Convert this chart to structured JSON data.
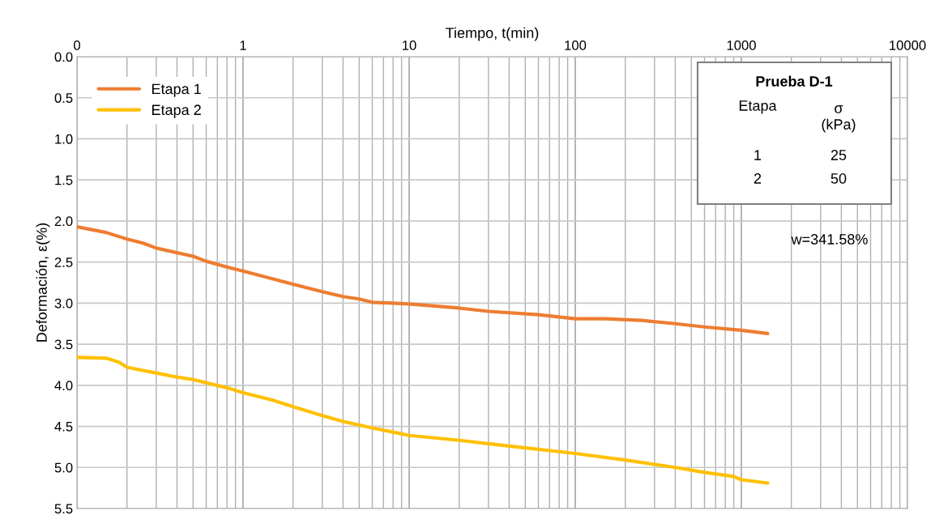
{
  "chart_data": {
    "type": "line",
    "xlabel": "Tiempo, t(min)",
    "ylabel": "Deformación, ε(%)",
    "log": "x",
    "xlim": [
      0.1,
      10000
    ],
    "xticks": [
      {
        "value": 0.1,
        "label": "0"
      },
      1,
      10,
      100,
      1000,
      10000
    ],
    "ylim": [
      5.5,
      0.0
    ],
    "yticks": [
      {
        "value": 0.0,
        "label": "0.0"
      },
      {
        "value": 0.5,
        "label": "0.5"
      },
      {
        "value": 1.0,
        "label": "1.0"
      },
      {
        "value": 1.5,
        "label": "1.5"
      },
      {
        "value": 2.0,
        "label": "2.0"
      },
      {
        "value": 2.5,
        "label": "2.5"
      },
      {
        "value": 3.0,
        "label": "3.0"
      },
      {
        "value": 3.5,
        "label": "3.5"
      },
      {
        "value": 4.0,
        "label": "4.0"
      },
      {
        "value": 4.5,
        "label": "4.5"
      },
      {
        "value": 5.0,
        "label": "5.0"
      },
      {
        "value": 5.5,
        "label": "5.5"
      }
    ],
    "grid": true,
    "legend": "top left",
    "marker": "none",
    "line_style": "solid",
    "series": [
      {
        "name": "Etapa 1",
        "color": "#ed7d31",
        "x": [
          0.1,
          0.15,
          0.2,
          0.25,
          0.3,
          0.5,
          0.6,
          0.8,
          1,
          2,
          3,
          4,
          5,
          6,
          8,
          10,
          20,
          30,
          60,
          100,
          150,
          250,
          400,
          600,
          1000,
          1440
        ],
        "values": [
          2.07,
          2.14,
          2.22,
          2.27,
          2.33,
          2.43,
          2.49,
          2.56,
          2.61,
          2.77,
          2.86,
          2.92,
          2.95,
          2.99,
          3.0,
          3.01,
          3.06,
          3.1,
          3.14,
          3.19,
          3.19,
          3.21,
          3.25,
          3.29,
          3.33,
          3.37
        ]
      },
      {
        "name": "Etapa 2",
        "color": "#ffc000",
        "x": [
          0.1,
          0.15,
          0.18,
          0.2,
          0.25,
          0.3,
          0.4,
          0.5,
          0.8,
          1,
          1.5,
          2,
          3,
          4,
          6,
          8,
          10,
          20,
          40,
          100,
          200,
          400,
          600,
          900,
          1000,
          1440
        ],
        "values": [
          3.66,
          3.67,
          3.72,
          3.78,
          3.82,
          3.85,
          3.9,
          3.93,
          4.03,
          4.09,
          4.18,
          4.26,
          4.37,
          4.44,
          4.52,
          4.57,
          4.61,
          4.67,
          4.74,
          4.83,
          4.91,
          5.0,
          5.06,
          5.11,
          5.15,
          5.19
        ]
      }
    ],
    "annotations": [
      "Prueba D-1",
      "Etapa",
      "σ\n(kPa)",
      "1",
      "25",
      "2",
      "50",
      "w=341.58%"
    ]
  }
}
